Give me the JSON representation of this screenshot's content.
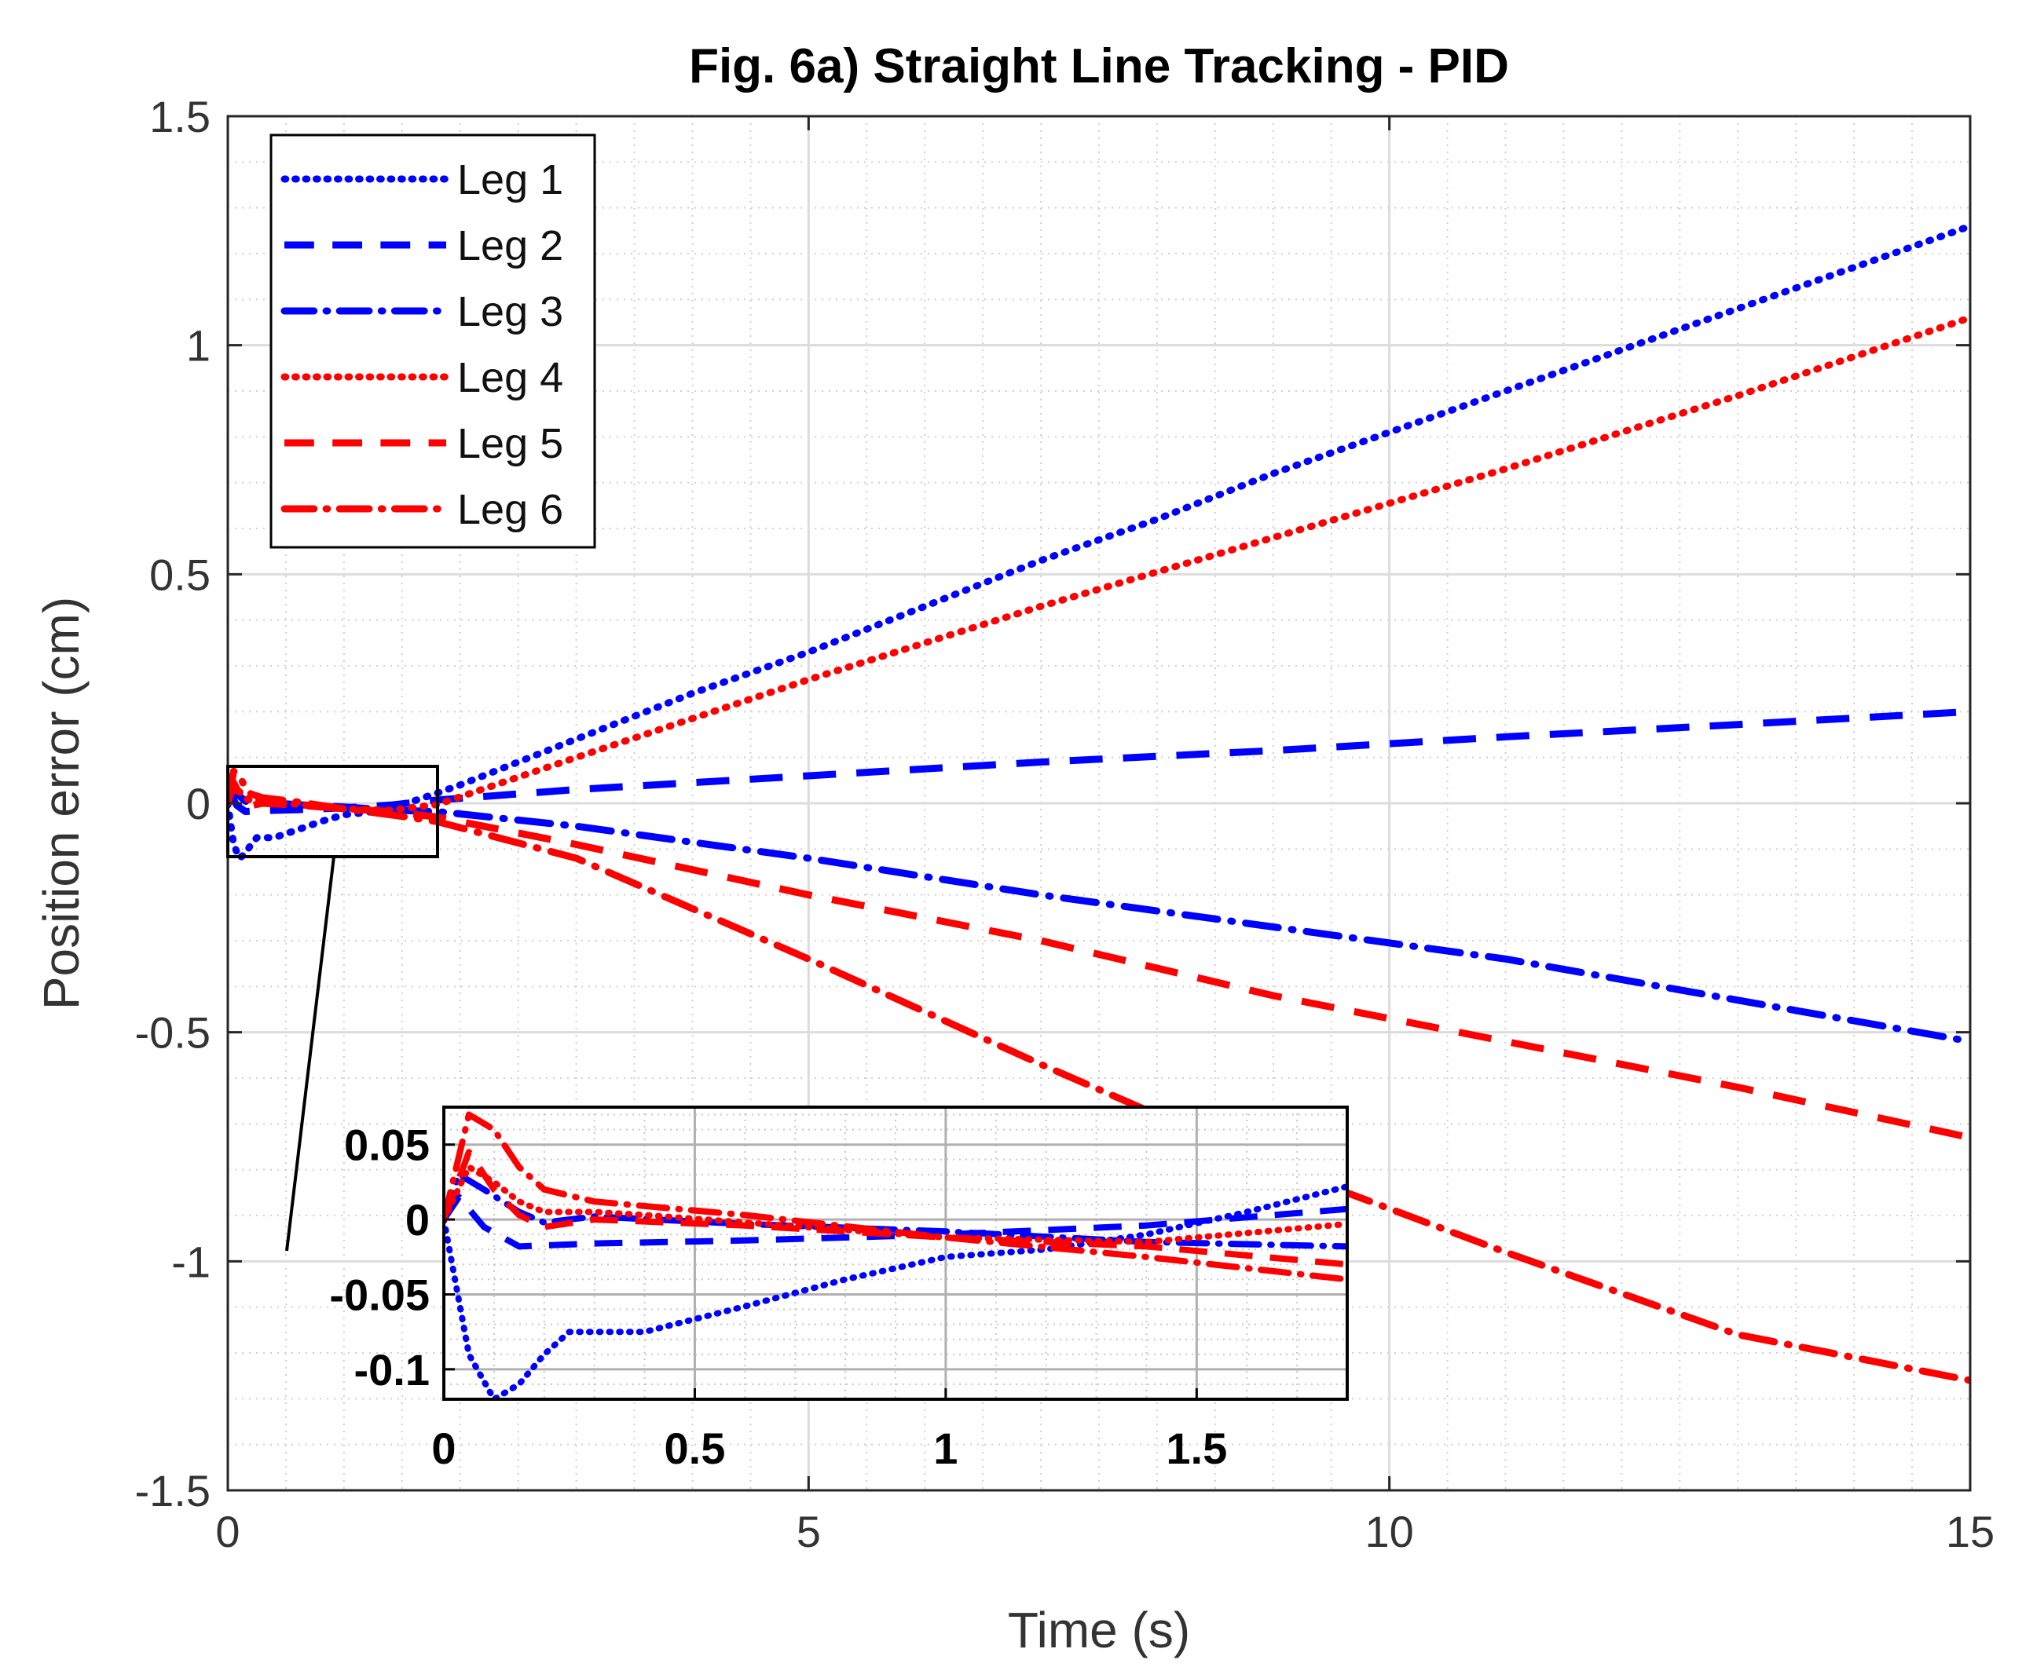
{
  "chart_data": {
    "type": "line",
    "title": "Fig. 6a) Straight Line Tracking - PID",
    "xlabel": "Time (s)",
    "ylabel": "Position error (cm)",
    "xlim": [
      0,
      15
    ],
    "ylim": [
      -1.5,
      1.5
    ],
    "xticks": [
      0,
      5,
      10,
      15
    ],
    "xtick_labels": [
      "0",
      "5",
      "10",
      "15"
    ],
    "yticks": [
      1.5,
      1,
      0.5,
      0,
      -0.5,
      -1,
      -1.5
    ],
    "ytick_labels": [
      "1.5",
      "1",
      "0.5",
      "0",
      "-0.5",
      "-1",
      "-1.5"
    ],
    "grid": true,
    "minor_grid": true,
    "legend_position": "top-left",
    "series": [
      {
        "name": "Leg 1",
        "color": "#0000ff",
        "style": "dotted",
        "x": [
          0,
          0.05,
          0.1,
          0.15,
          0.2,
          0.25,
          0.3,
          0.4,
          0.6,
          0.8,
          1.0,
          1.2,
          1.4,
          1.6,
          1.8,
          2,
          3,
          4,
          5,
          6,
          7,
          8,
          9,
          10,
          11,
          12,
          13,
          14,
          15
        ],
        "y": [
          0,
          -0.09,
          -0.12,
          -0.11,
          -0.09,
          -0.075,
          -0.075,
          -0.075,
          -0.058,
          -0.04,
          -0.025,
          -0.02,
          -0.01,
          0.005,
          0.022,
          0.04,
          0.14,
          0.24,
          0.33,
          0.43,
          0.53,
          0.62,
          0.72,
          0.81,
          0.9,
          0.99,
          1.08,
          1.17,
          1.26
        ]
      },
      {
        "name": "Leg 2",
        "color": "#0000ff",
        "style": "dashed",
        "x": [
          0,
          0.03,
          0.08,
          0.15,
          0.3,
          0.6,
          1.0,
          1.4,
          1.8,
          3,
          5,
          7,
          9,
          11,
          13,
          15
        ],
        "y": [
          0,
          0.015,
          -0.005,
          -0.018,
          -0.016,
          -0.014,
          -0.01,
          -0.004,
          0.007,
          0.03,
          0.06,
          0.09,
          0.115,
          0.145,
          0.172,
          0.2
        ]
      },
      {
        "name": "Leg 3",
        "color": "#0000ff",
        "style": "dashdot",
        "x": [
          0,
          0.03,
          0.08,
          0.15,
          0.2,
          0.3,
          0.6,
          1.0,
          1.4,
          1.8,
          3,
          5,
          7,
          9,
          11,
          13,
          15
        ],
        "y": [
          0,
          0.03,
          0.02,
          0.005,
          -0.002,
          0.002,
          -0.003,
          -0.008,
          -0.015,
          -0.018,
          -0.05,
          -0.12,
          -0.2,
          -0.27,
          -0.34,
          -0.43,
          -0.52
        ]
      },
      {
        "name": "Leg 4",
        "color": "#ff0000",
        "style": "dotted",
        "x": [
          0,
          0.05,
          0.1,
          0.15,
          0.2,
          0.3,
          0.4,
          0.6,
          1.0,
          1.4,
          1.8,
          3,
          5,
          7,
          9,
          11,
          13,
          15
        ],
        "y": [
          0,
          0.035,
          0.025,
          0.012,
          0.005,
          0.005,
          0.003,
          -0.002,
          -0.012,
          -0.015,
          -0.003,
          0.1,
          0.27,
          0.43,
          0.58,
          0.73,
          0.89,
          1.06
        ]
      },
      {
        "name": "Leg 5",
        "color": "#ff0000",
        "style": "dashed",
        "x": [
          0,
          0.05,
          0.1,
          0.15,
          0.2,
          0.3,
          0.6,
          1.0,
          1.4,
          1.8,
          3,
          5,
          7,
          9,
          11,
          13,
          15
        ],
        "y": [
          0,
          0.045,
          0.02,
          0.003,
          -0.005,
          0.0,
          -0.004,
          -0.012,
          -0.018,
          -0.03,
          -0.09,
          -0.2,
          -0.3,
          -0.42,
          -0.52,
          -0.62,
          -0.73
        ]
      },
      {
        "name": "Leg 6",
        "color": "#ff0000",
        "style": "dashdot",
        "x": [
          0,
          0.05,
          0.1,
          0.15,
          0.2,
          0.3,
          0.6,
          1.0,
          1.4,
          1.8,
          3,
          5,
          7,
          9,
          11,
          13,
          15
        ],
        "y": [
          0,
          0.07,
          0.06,
          0.035,
          0.02,
          0.012,
          0.003,
          -0.012,
          -0.025,
          -0.04,
          -0.12,
          -0.34,
          -0.57,
          -0.79,
          -0.98,
          -1.16,
          -1.26
        ]
      }
    ],
    "inset": {
      "xlim": [
        0,
        1.8
      ],
      "ylim": [
        -0.12,
        0.075
      ],
      "xticks": [
        0,
        0.5,
        1,
        1.5
      ],
      "xtick_labels": [
        "0",
        "0.5",
        "1",
        "1.5"
      ],
      "yticks": [
        0.05,
        0,
        -0.05,
        -0.1
      ],
      "ytick_labels": [
        "0.05",
        "0",
        "-0.05",
        "-0.1"
      ],
      "zoom_region": {
        "xlim": [
          0,
          1.8
        ],
        "ylim": [
          -0.11,
          0.08
        ]
      }
    }
  }
}
